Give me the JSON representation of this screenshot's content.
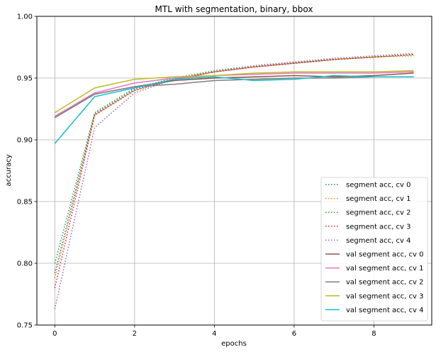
{
  "chart_data": {
    "type": "line",
    "title": "MTL with segmentation, binary, bbox",
    "xlabel": "epochs",
    "ylabel": "accuracy",
    "xlim": [
      -0.45,
      9.45
    ],
    "ylim": [
      0.75,
      1.0
    ],
    "x_ticks": [
      0,
      2,
      4,
      6,
      8
    ],
    "x_tick_labels": [
      "0",
      "2",
      "4",
      "6",
      "8"
    ],
    "y_ticks": [
      0.75,
      0.8,
      0.85,
      0.9,
      0.95,
      1.0
    ],
    "y_tick_labels": [
      "0.75",
      "0.80",
      "0.85",
      "0.90",
      "0.95",
      "1.00"
    ],
    "grid": true,
    "legend_position": "bottom-right",
    "x": [
      0,
      1,
      2,
      3,
      4,
      5,
      6,
      7,
      8,
      9
    ],
    "series": [
      {
        "name": "segment acc, cv 0",
        "color": "#1f77b4",
        "style": "dotted",
        "values": [
          0.792,
          0.921,
          0.941,
          0.949,
          0.955,
          0.959,
          0.962,
          0.965,
          0.967,
          0.969
        ]
      },
      {
        "name": "segment acc, cv 1",
        "color": "#ff7f0e",
        "style": "dotted",
        "values": [
          0.788,
          0.92,
          0.94,
          0.949,
          0.955,
          0.959,
          0.962,
          0.965,
          0.967,
          0.968
        ]
      },
      {
        "name": "segment acc, cv 2",
        "color": "#2ca02c",
        "style": "dotted",
        "values": [
          0.8,
          0.922,
          0.942,
          0.95,
          0.956,
          0.96,
          0.963,
          0.965,
          0.967,
          0.969
        ]
      },
      {
        "name": "segment acc, cv 3",
        "color": "#d62728",
        "style": "dotted",
        "values": [
          0.78,
          0.92,
          0.94,
          0.949,
          0.955,
          0.959,
          0.962,
          0.965,
          0.967,
          0.969
        ]
      },
      {
        "name": "segment acc, cv 4",
        "color": "#9467bd",
        "style": "dotted",
        "values": [
          0.763,
          0.91,
          0.938,
          0.949,
          0.955,
          0.96,
          0.963,
          0.966,
          0.968,
          0.97
        ]
      },
      {
        "name": "val segment acc, cv 0",
        "color": "#8c564b",
        "style": "solid",
        "values": [
          0.918,
          0.937,
          0.943,
          0.948,
          0.95,
          0.951,
          0.952,
          0.951,
          0.952,
          0.954
        ]
      },
      {
        "name": "val segment acc, cv 1",
        "color": "#e377c2",
        "style": "solid",
        "values": [
          0.919,
          0.938,
          0.946,
          0.95,
          0.952,
          0.953,
          0.954,
          0.954,
          0.954,
          0.955
        ]
      },
      {
        "name": "val segment acc, cv 2",
        "color": "#7f7f7f",
        "style": "solid",
        "values": [
          0.918,
          0.937,
          0.943,
          0.945,
          0.948,
          0.949,
          0.95,
          0.95,
          0.951,
          0.951
        ]
      },
      {
        "name": "val segment acc, cv 3",
        "color": "#bcbd22",
        "style": "solid",
        "values": [
          0.922,
          0.942,
          0.949,
          0.951,
          0.952,
          0.954,
          0.955,
          0.955,
          0.955,
          0.956
        ]
      },
      {
        "name": "val segment acc, cv 4",
        "color": "#17becf",
        "style": "solid",
        "values": [
          0.897,
          0.935,
          0.942,
          0.949,
          0.951,
          0.948,
          0.949,
          0.952,
          0.951,
          0.951
        ]
      }
    ]
  }
}
